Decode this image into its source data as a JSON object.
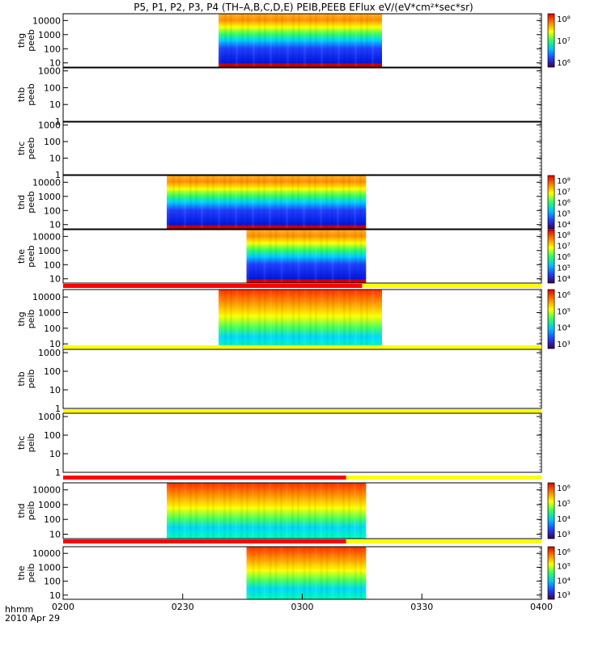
{
  "title": "P5, P1, P2, P3, P4 (TH–A,B,C,D,E) PEIB,PEEB EFlux eV/(eV*cm²*sec*sr)",
  "x_axis": {
    "ticks": [
      "0200",
      "0230",
      "0300",
      "0330",
      "0400"
    ],
    "left_label_1": "hhmm",
    "left_label_2": "2010 Apr 29"
  },
  "chart_data": {
    "type": "heatmap",
    "x_unit": "minutes after 02:00 UT",
    "x_range": [
      0,
      120
    ],
    "y_scale": "log",
    "colormap": [
      "#3a0052",
      "#2040ff",
      "#00c0ff",
      "#30ff60",
      "#ffff00",
      "#ff8000",
      "#e00000"
    ],
    "panels": [
      {
        "label_1": "thg",
        "label_2": "peeb",
        "y_ticks": [
          "10",
          "100",
          "1000",
          "10000"
        ],
        "y_range": [
          5,
          30000
        ],
        "data_start": 39,
        "data_end": 80,
        "cbar_ticks": [
          "10⁶",
          "10⁷",
          "10⁸"
        ],
        "bar": null
      },
      {
        "label_1": "thb",
        "label_2": "peeb",
        "y_ticks": [
          "1",
          "10",
          "100",
          "1000"
        ],
        "y_range": [
          1,
          1500
        ],
        "data_start": null,
        "data_end": null,
        "cbar_ticks": [],
        "bar": null
      },
      {
        "label_1": "thc",
        "label_2": "peeb",
        "y_ticks": [
          "1",
          "10",
          "100",
          "1000"
        ],
        "y_range": [
          1,
          1500
        ],
        "data_start": null,
        "data_end": null,
        "cbar_ticks": [],
        "bar": null
      },
      {
        "label_1": "thd",
        "label_2": "peeb",
        "y_ticks": [
          "10",
          "100",
          "1000",
          "10000"
        ],
        "y_range": [
          5,
          30000
        ],
        "data_start": 26,
        "data_end": 76,
        "cbar_ticks": [
          "10⁴",
          "10⁵",
          "10⁶",
          "10⁷",
          "10⁸"
        ],
        "bar": null
      },
      {
        "label_1": "the",
        "label_2": "peeb",
        "y_ticks": [
          "10",
          "100",
          "1000",
          "10000"
        ],
        "y_range": [
          5,
          30000
        ],
        "data_start": 46,
        "data_end": 76,
        "cbar_ticks": [
          "10⁴",
          "10⁵",
          "10⁶",
          "10⁷",
          "10⁸"
        ],
        "bar": {
          "red_until": 75
        }
      },
      {
        "label_1": "thg",
        "label_2": "peib",
        "y_ticks": [
          "10",
          "100",
          "1000",
          "10000"
        ],
        "y_range": [
          5,
          30000
        ],
        "data_start": 39,
        "data_end": 80,
        "cbar_ticks": [
          "10³",
          "10⁴",
          "10⁵",
          "10⁶"
        ],
        "bar": {
          "red_until": 0
        }
      },
      {
        "label_1": "thb",
        "label_2": "peib",
        "y_ticks": [
          "1",
          "10",
          "100",
          "1000"
        ],
        "y_range": [
          1,
          1500
        ],
        "data_start": null,
        "data_end": null,
        "cbar_ticks": [],
        "bar": {
          "red_until": 0
        }
      },
      {
        "label_1": "thc",
        "label_2": "peib",
        "y_ticks": [
          "1",
          "10",
          "100",
          "1000"
        ],
        "y_range": [
          1,
          1500
        ],
        "data_start": null,
        "data_end": null,
        "cbar_ticks": [],
        "bar": {
          "red_until": 71
        }
      },
      {
        "label_1": "thd",
        "label_2": "peib",
        "y_ticks": [
          "10",
          "100",
          "1000",
          "10000"
        ],
        "y_range": [
          5,
          30000
        ],
        "data_start": 26,
        "data_end": 76,
        "cbar_ticks": [
          "10³",
          "10⁴",
          "10⁵",
          "10⁶"
        ],
        "bar": {
          "red_until": 71
        }
      },
      {
        "label_1": "the",
        "label_2": "peib",
        "y_ticks": [
          "10",
          "100",
          "1000",
          "10000"
        ],
        "y_range": [
          5,
          30000
        ],
        "data_start": 46,
        "data_end": 76,
        "cbar_ticks": [
          "10³",
          "10⁴",
          "10⁵",
          "10⁶"
        ],
        "bar": null
      }
    ]
  }
}
